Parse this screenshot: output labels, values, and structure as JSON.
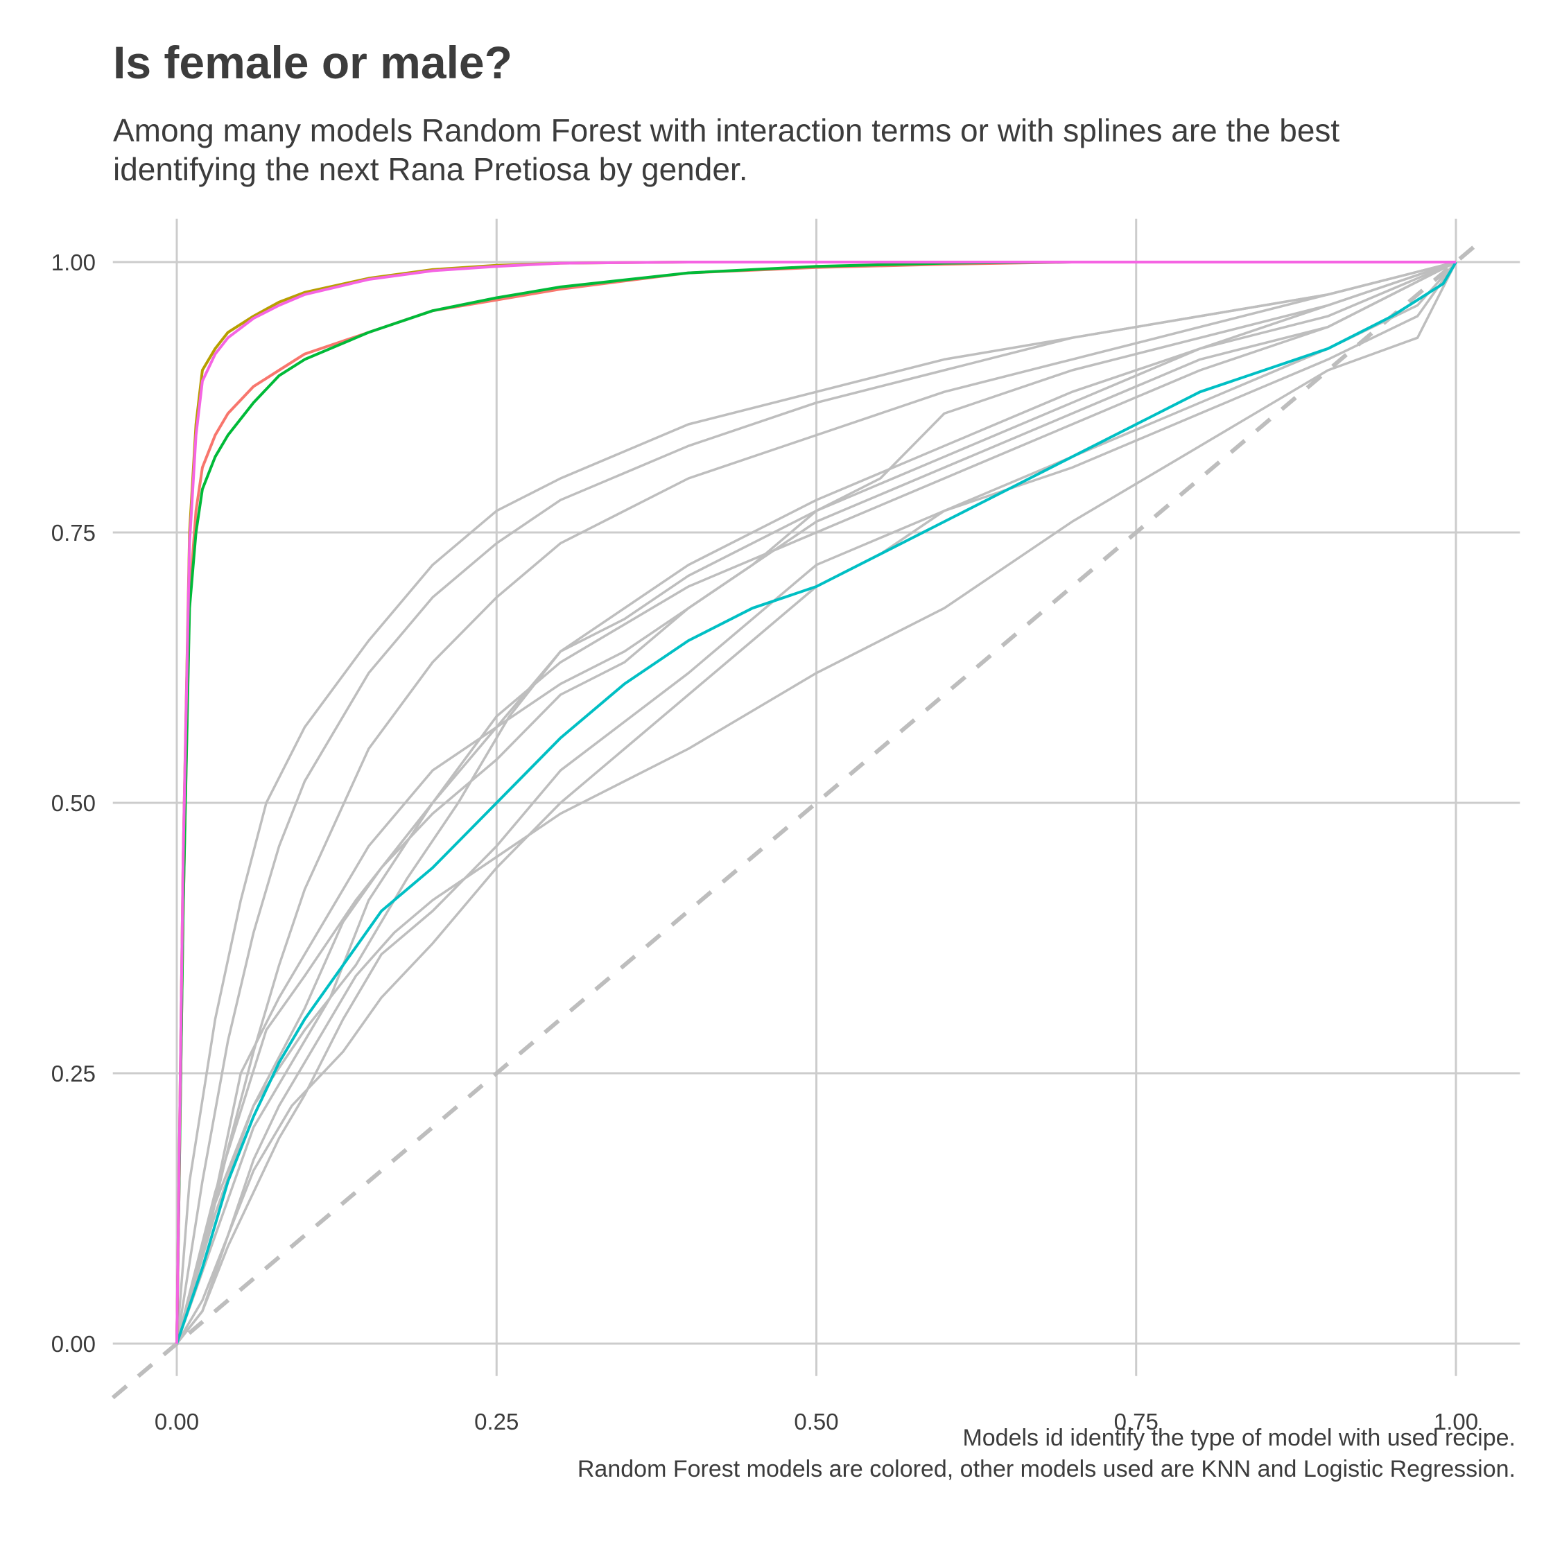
{
  "title": "Is female or male?",
  "subtitle": [
    "Among many models Random Forest with interaction terms or with splines are the best",
    "identifying the next Rana Pretiosa by gender."
  ],
  "caption": [
    "Models id identify the type of model with used recipe.",
    "Random Forest models are colored, other models used are KNN and Logistic Regression."
  ],
  "chart_data": {
    "type": "line",
    "title": "Is female or male?",
    "xlabel": "",
    "ylabel": "",
    "xlim": [
      -0.05,
      1.05
    ],
    "ylim": [
      -0.03,
      1.04
    ],
    "xticks": [
      0.0,
      0.25,
      0.5,
      0.75,
      1.0
    ],
    "yticks": [
      0.0,
      0.25,
      0.5,
      0.75,
      1.0
    ],
    "xtick_labels": [
      "0.00",
      "0.25",
      "0.50",
      "0.75",
      "1.00"
    ],
    "ytick_labels": [
      "0.00",
      "0.25",
      "0.50",
      "0.75",
      "1.00"
    ],
    "grid": true,
    "legend": "none",
    "reference_line": {
      "style": "dashed",
      "color": "#bdbdbd",
      "x": [
        -0.05,
        1.02
      ],
      "y": [
        -0.05,
        1.02
      ]
    },
    "series": [
      {
        "color": "#bebebe",
        "x": [
          0,
          0.01,
          0.03,
          0.05,
          0.07,
          0.1,
          0.15,
          0.2,
          0.25,
          0.3,
          0.4,
          0.5,
          0.6,
          0.7,
          0.8,
          0.9,
          1.0
        ],
        "y": [
          0,
          0.15,
          0.3,
          0.41,
          0.5,
          0.57,
          0.65,
          0.72,
          0.77,
          0.8,
          0.85,
          0.88,
          0.91,
          0.93,
          0.95,
          0.97,
          1.0
        ]
      },
      {
        "color": "#bebebe",
        "x": [
          0,
          0.02,
          0.04,
          0.06,
          0.08,
          0.1,
          0.15,
          0.2,
          0.25,
          0.3,
          0.4,
          0.5,
          0.6,
          0.7,
          0.8,
          0.9,
          1.0
        ],
        "y": [
          0,
          0.15,
          0.28,
          0.38,
          0.46,
          0.52,
          0.62,
          0.69,
          0.74,
          0.78,
          0.83,
          0.87,
          0.9,
          0.93,
          0.95,
          0.97,
          1.0
        ]
      },
      {
        "color": "#bebebe",
        "x": [
          0,
          0.02,
          0.04,
          0.06,
          0.08,
          0.1,
          0.15,
          0.2,
          0.25,
          0.3,
          0.4,
          0.5,
          0.6,
          0.7,
          0.8,
          0.9,
          1.0
        ],
        "y": [
          0,
          0.08,
          0.18,
          0.27,
          0.35,
          0.42,
          0.55,
          0.63,
          0.69,
          0.74,
          0.8,
          0.84,
          0.88,
          0.91,
          0.94,
          0.97,
          1.0
        ]
      },
      {
        "color": "#bebebe",
        "x": [
          0,
          0.02,
          0.05,
          0.08,
          0.1,
          0.13,
          0.15,
          0.2,
          0.25,
          0.3,
          0.35,
          0.4,
          0.5,
          0.6,
          0.7,
          0.8,
          0.9,
          1.0
        ],
        "y": [
          0,
          0.08,
          0.25,
          0.32,
          0.36,
          0.42,
          0.46,
          0.53,
          0.57,
          0.61,
          0.64,
          0.68,
          0.76,
          0.81,
          0.86,
          0.91,
          0.94,
          1.0
        ]
      },
      {
        "color": "#bebebe",
        "x": [
          0,
          0.03,
          0.06,
          0.1,
          0.13,
          0.16,
          0.2,
          0.25,
          0.3,
          0.35,
          0.4,
          0.45,
          0.5,
          0.55,
          0.6,
          0.7,
          0.8,
          0.9,
          1.0
        ],
        "y": [
          0,
          0.13,
          0.22,
          0.31,
          0.39,
          0.44,
          0.49,
          0.54,
          0.6,
          0.63,
          0.68,
          0.72,
          0.77,
          0.8,
          0.86,
          0.9,
          0.93,
          0.96,
          1.0
        ]
      },
      {
        "color": "#bebebe",
        "x": [
          0,
          0.03,
          0.06,
          0.1,
          0.14,
          0.18,
          0.22,
          0.26,
          0.3,
          0.35,
          0.4,
          0.45,
          0.5,
          0.6,
          0.7,
          0.8,
          0.9,
          1.0
        ],
        "y": [
          0,
          0.12,
          0.22,
          0.29,
          0.35,
          0.43,
          0.5,
          0.58,
          0.64,
          0.67,
          0.71,
          0.74,
          0.77,
          0.82,
          0.87,
          0.92,
          0.95,
          1.0
        ]
      },
      {
        "color": "#bebebe",
        "x": [
          0,
          0.03,
          0.06,
          0.1,
          0.12,
          0.15,
          0.2,
          0.25,
          0.3,
          0.4,
          0.5,
          0.6,
          0.7,
          0.8,
          0.9,
          1.0
        ],
        "y": [
          0,
          0.1,
          0.2,
          0.28,
          0.32,
          0.41,
          0.5,
          0.58,
          0.63,
          0.7,
          0.75,
          0.8,
          0.85,
          0.9,
          0.94,
          1.0
        ]
      },
      {
        "color": "#bebebe",
        "x": [
          0,
          0.03,
          0.07,
          0.1,
          0.14,
          0.2,
          0.25,
          0.3,
          0.4,
          0.5,
          0.6,
          0.7,
          0.8,
          0.9,
          1.0
        ],
        "y": [
          0,
          0.14,
          0.29,
          0.34,
          0.41,
          0.5,
          0.57,
          0.64,
          0.72,
          0.78,
          0.83,
          0.88,
          0.92,
          0.96,
          1.0
        ]
      },
      {
        "color": "#bebebe",
        "x": [
          0,
          0.02,
          0.04,
          0.06,
          0.08,
          0.1,
          0.12,
          0.14,
          0.17,
          0.2,
          0.25,
          0.3,
          0.4,
          0.5,
          0.6,
          0.7,
          0.8,
          0.9,
          0.97,
          1.0
        ],
        "y": [
          0,
          0.04,
          0.1,
          0.17,
          0.22,
          0.26,
          0.3,
          0.34,
          0.38,
          0.41,
          0.45,
          0.49,
          0.55,
          0.62,
          0.68,
          0.76,
          0.83,
          0.9,
          0.93,
          1.0
        ]
      },
      {
        "color": "#bebebe",
        "x": [
          0,
          0.02,
          0.04,
          0.06,
          0.08,
          0.1,
          0.13,
          0.16,
          0.2,
          0.25,
          0.3,
          0.4,
          0.5,
          0.6,
          0.7,
          0.8,
          0.9,
          0.97,
          1.0
        ],
        "y": [
          0,
          0.03,
          0.09,
          0.14,
          0.19,
          0.23,
          0.3,
          0.36,
          0.4,
          0.46,
          0.53,
          0.62,
          0.72,
          0.77,
          0.81,
          0.86,
          0.91,
          0.95,
          1.0
        ]
      },
      {
        "color": "#bebebe",
        "x": [
          0,
          0.02,
          0.04,
          0.06,
          0.09,
          0.13,
          0.16,
          0.2,
          0.25,
          0.3,
          0.35,
          0.4,
          0.45,
          0.5,
          0.55,
          0.6,
          0.7,
          0.8,
          0.9,
          0.97,
          1.0
        ],
        "y": [
          0,
          0.03,
          0.1,
          0.16,
          0.22,
          0.27,
          0.32,
          0.37,
          0.44,
          0.5,
          0.55,
          0.6,
          0.65,
          0.7,
          0.73,
          0.77,
          0.82,
          0.87,
          0.92,
          0.96,
          1.0
        ]
      }
    ],
    "highlight_series": [
      {
        "color": "#00bfc4",
        "x": [
          0,
          0.02,
          0.04,
          0.06,
          0.08,
          0.1,
          0.13,
          0.16,
          0.2,
          0.25,
          0.3,
          0.35,
          0.4,
          0.45,
          0.5,
          0.55,
          0.6,
          0.65,
          0.7,
          0.75,
          0.8,
          0.85,
          0.9,
          0.95,
          0.99,
          1.0
        ],
        "y": [
          0,
          0.07,
          0.15,
          0.21,
          0.26,
          0.3,
          0.35,
          0.4,
          0.44,
          0.5,
          0.56,
          0.61,
          0.65,
          0.68,
          0.7,
          0.73,
          0.76,
          0.79,
          0.82,
          0.85,
          0.88,
          0.9,
          0.92,
          0.95,
          0.98,
          1.0
        ]
      },
      {
        "color": "#f8766d",
        "x": [
          0,
          0.005,
          0.01,
          0.015,
          0.02,
          0.03,
          0.04,
          0.06,
          0.08,
          0.1,
          0.15,
          0.2,
          0.25,
          0.3,
          0.4,
          0.5,
          0.6,
          0.7,
          0.8,
          1.0
        ],
        "y": [
          0,
          0.4,
          0.69,
          0.77,
          0.81,
          0.84,
          0.86,
          0.885,
          0.9,
          0.915,
          0.935,
          0.955,
          0.965,
          0.975,
          0.99,
          0.995,
          0.998,
          1.0,
          1.0,
          1.0
        ]
      },
      {
        "color": "#00ba38",
        "x": [
          0,
          0.005,
          0.01,
          0.015,
          0.02,
          0.03,
          0.04,
          0.06,
          0.08,
          0.1,
          0.15,
          0.2,
          0.25,
          0.3,
          0.4,
          0.5,
          0.6,
          0.7,
          0.8,
          1.0
        ],
        "y": [
          0,
          0.4,
          0.68,
          0.75,
          0.79,
          0.82,
          0.84,
          0.87,
          0.895,
          0.91,
          0.935,
          0.955,
          0.967,
          0.977,
          0.99,
          0.996,
          0.999,
          1.0,
          1.0,
          1.0
        ]
      },
      {
        "color": "#b79f00",
        "x": [
          0,
          0.005,
          0.01,
          0.015,
          0.02,
          0.03,
          0.04,
          0.06,
          0.08,
          0.1,
          0.15,
          0.2,
          0.25,
          0.3,
          0.4,
          0.5,
          1.0
        ],
        "y": [
          0,
          0.45,
          0.75,
          0.85,
          0.9,
          0.92,
          0.935,
          0.95,
          0.963,
          0.972,
          0.985,
          0.993,
          0.997,
          0.999,
          1.0,
          1.0,
          1.0
        ]
      },
      {
        "color": "#f564e3",
        "x": [
          0,
          0.005,
          0.01,
          0.015,
          0.02,
          0.03,
          0.04,
          0.06,
          0.08,
          0.1,
          0.15,
          0.2,
          0.25,
          0.3,
          0.4,
          0.5,
          1.0
        ],
        "y": [
          0,
          0.45,
          0.74,
          0.84,
          0.89,
          0.915,
          0.93,
          0.948,
          0.96,
          0.97,
          0.984,
          0.992,
          0.996,
          0.999,
          1.0,
          1.0,
          1.0
        ]
      }
    ]
  }
}
